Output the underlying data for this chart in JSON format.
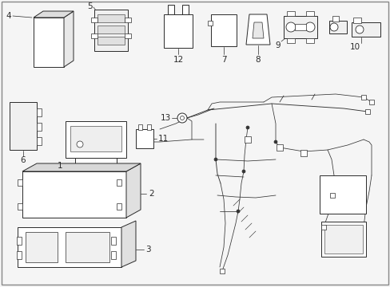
{
  "bg_color": "#f5f5f5",
  "border_color": "#cccccc",
  "line_color": "#2a2a2a",
  "label_fontsize": 7.5,
  "arrow_lw": 0.6,
  "component_lw": 0.7,
  "wire_lw": 0.55,
  "figsize": [
    4.89,
    3.6
  ],
  "dpi": 100
}
